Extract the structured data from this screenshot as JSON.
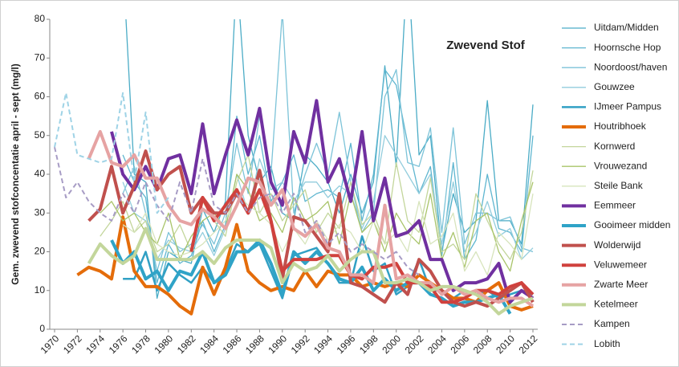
{
  "chart_data": {
    "type": "line",
    "title": "Zwevend Stof",
    "y_label": "Gem. zwevend stofconcentatie april - sept (mg/l)",
    "x": [
      1970,
      1971,
      1972,
      1973,
      1974,
      1975,
      1976,
      1977,
      1978,
      1979,
      1980,
      1981,
      1982,
      1983,
      1984,
      1985,
      1986,
      1987,
      1988,
      1989,
      1990,
      1991,
      1992,
      1993,
      1994,
      1995,
      1996,
      1997,
      1998,
      1999,
      2000,
      2001,
      2002,
      2003,
      2004,
      2005,
      2006,
      2007,
      2008,
      2009,
      2010,
      2011,
      2012
    ],
    "xlim": [
      1970,
      2012
    ],
    "xticks": [
      1970,
      1972,
      1974,
      1976,
      1978,
      1980,
      1982,
      1984,
      1986,
      1988,
      1990,
      1992,
      1994,
      1996,
      1998,
      2000,
      2002,
      2004,
      2006,
      2008,
      2010,
      2012
    ],
    "ylim": [
      0,
      80
    ],
    "yticks": [
      0,
      10,
      20,
      30,
      40,
      50,
      60,
      70,
      80
    ],
    "series": [
      {
        "name": "Uitdam/Midden",
        "color": "#4bacc6",
        "style": "thin",
        "values": [
          null,
          null,
          null,
          null,
          null,
          null,
          95,
          40,
          38,
          8,
          20,
          18,
          17,
          31,
          25,
          33,
          92,
          50,
          38,
          42,
          30,
          28,
          45,
          42,
          38,
          30,
          40,
          30,
          38,
          68,
          42,
          95,
          45,
          50,
          20,
          35,
          25,
          28,
          59,
          28,
          28,
          22,
          58
        ]
      },
      {
        "name": "Hoornsche Hop",
        "color": "#5fb6d0",
        "style": "thin",
        "values": [
          null,
          null,
          null,
          null,
          null,
          null,
          45,
          38,
          34,
          12,
          22,
          17,
          19,
          28,
          20,
          27,
          55,
          40,
          50,
          33,
          38,
          45,
          33,
          35,
          36,
          34,
          48,
          28,
          40,
          67,
          63,
          48,
          35,
          42,
          19,
          43,
          18,
          23,
          40,
          26,
          25,
          20,
          50
        ]
      },
      {
        "name": "Noordoost/haven",
        "color": "#7cc3d8",
        "style": "thin",
        "values": [
          null,
          null,
          null,
          null,
          null,
          null,
          35,
          42,
          30,
          15,
          25,
          20,
          22,
          27,
          22,
          30,
          48,
          35,
          55,
          40,
          82,
          30,
          40,
          48,
          40,
          56,
          38,
          25,
          30,
          60,
          67,
          43,
          42,
          52,
          25,
          52,
          22,
          30,
          30,
          28,
          29,
          21,
          20
        ]
      },
      {
        "name": "Gouwzee",
        "color": "#93cddd",
        "style": "thin",
        "values": [
          null,
          null,
          null,
          null,
          null,
          null,
          38,
          30,
          28,
          18,
          23,
          21,
          20,
          25,
          19,
          26,
          40,
          30,
          44,
          36,
          38,
          33,
          38,
          38,
          34,
          37,
          35,
          26,
          33,
          50,
          45,
          40,
          35,
          40,
          22,
          38,
          20,
          25,
          33,
          24,
          26,
          18,
          21
        ]
      },
      {
        "name": "IJmeer Pampus",
        "color": "#31a0c4",
        "style": "medium",
        "values": [
          null,
          null,
          null,
          null,
          null,
          null,
          13,
          13,
          20,
          10,
          17,
          14,
          12,
          16,
          12,
          15,
          22,
          20,
          22,
          15,
          8,
          19,
          20,
          21,
          17,
          12,
          12,
          24,
          15,
          17,
          9,
          11,
          18,
          10,
          10,
          8,
          10,
          9,
          10,
          8,
          9,
          10,
          9
        ]
      },
      {
        "name": "Houtribhoek",
        "color": "#e46c0a",
        "style": "thick",
        "values": [
          null,
          null,
          14,
          16,
          15,
          13,
          29,
          15,
          11,
          11,
          9,
          6,
          4,
          16,
          9,
          16,
          27,
          15,
          12,
          10,
          11,
          10,
          15,
          11,
          15,
          14,
          14,
          11,
          12,
          11,
          12,
          11,
          14,
          12,
          10,
          8,
          8,
          7,
          10,
          12,
          6,
          5,
          6
        ]
      },
      {
        "name": "Kornwerd",
        "color": "#c3d69b",
        "style": "thin",
        "values": [
          null,
          null,
          null,
          null,
          24,
          28,
          33,
          25,
          28,
          20,
          22,
          27,
          20,
          33,
          28,
          24,
          38,
          45,
          30,
          35,
          28,
          32,
          36,
          25,
          30,
          26,
          38,
          27,
          30,
          22,
          43,
          28,
          25,
          39,
          20,
          22,
          18,
          35,
          28,
          22,
          18,
          25,
          41
        ]
      },
      {
        "name": "Vrouwezand",
        "color": "#a9c46a",
        "style": "thin",
        "values": [
          null,
          null,
          null,
          null,
          30,
          33,
          28,
          30,
          25,
          22,
          30,
          18,
          24,
          28,
          30,
          26,
          40,
          36,
          28,
          30,
          25,
          34,
          28,
          30,
          33,
          22,
          35,
          25,
          28,
          20,
          30,
          25,
          22,
          35,
          18,
          25,
          16,
          28,
          30,
          20,
          15,
          28,
          38
        ]
      },
      {
        "name": "Steile Bank",
        "color": "#d7e4bc",
        "style": "thin",
        "values": [
          null,
          null,
          null,
          null,
          null,
          null,
          27,
          25,
          30,
          22,
          20,
          19,
          20,
          22,
          25,
          28,
          35,
          32,
          30,
          27,
          20,
          26,
          22,
          28,
          23,
          27,
          25,
          20,
          28,
          22,
          25,
          20,
          33,
          22,
          24,
          30,
          15,
          20,
          14,
          25,
          22,
          18,
          35
        ]
      },
      {
        "name": "Eemmeer",
        "color": "#7030a0",
        "style": "thick",
        "values": [
          null,
          null,
          null,
          null,
          null,
          51,
          40,
          36,
          42,
          36,
          44,
          45,
          35,
          53,
          35,
          45,
          54,
          45,
          57,
          38,
          32,
          51,
          43,
          59,
          38,
          44,
          33,
          51,
          28,
          39,
          24,
          25,
          28,
          18,
          18,
          10,
          12,
          12,
          13,
          17,
          7,
          10,
          8
        ]
      },
      {
        "name": "Gooimeer midden",
        "color": "#2fa3c7",
        "style": "thick",
        "values": [
          null,
          null,
          null,
          null,
          null,
          23,
          17,
          20,
          13,
          15,
          10,
          15,
          14,
          20,
          12,
          14,
          20,
          20,
          23,
          17,
          9,
          20,
          17,
          20,
          17,
          13,
          12,
          16,
          10,
          13,
          10,
          12,
          12,
          9,
          8,
          6,
          7,
          7,
          8,
          9,
          4,
          null,
          null
        ]
      },
      {
        "name": "Wolderwijd",
        "color": "#c0504d",
        "style": "thick",
        "values": [
          null,
          null,
          null,
          28,
          31,
          42,
          30,
          37,
          46,
          36,
          40,
          42,
          30,
          34,
          30,
          30,
          35,
          30,
          41,
          28,
          13,
          29,
          28,
          24,
          20,
          35,
          12,
          11,
          9,
          7,
          12,
          9,
          18,
          15,
          10,
          7,
          6,
          7,
          6,
          8,
          10,
          12,
          7
        ]
      },
      {
        "name": "Veluwemeer",
        "color": "#d0413d",
        "style": "thick",
        "values": [
          null,
          null,
          null,
          null,
          null,
          null,
          null,
          null,
          null,
          null,
          null,
          null,
          20,
          34,
          28,
          32,
          36,
          30,
          36,
          28,
          15,
          18,
          18,
          18,
          19,
          19,
          14,
          13,
          16,
          16,
          17,
          12,
          12,
          11,
          7,
          7,
          8,
          10,
          10,
          9,
          11,
          12,
          9
        ]
      },
      {
        "name": "Zwarte Meer",
        "color": "#e6a3a3",
        "style": "thick",
        "values": [
          null,
          null,
          null,
          44,
          51,
          43,
          42,
          45,
          39,
          39,
          32,
          28,
          27,
          31,
          29,
          26,
          32,
          39,
          38,
          32,
          36,
          26,
          24,
          27,
          21,
          20,
          14,
          14,
          12,
          32,
          13,
          14,
          12,
          12,
          9,
          11,
          9,
          10,
          8,
          7,
          8,
          8,
          6
        ]
      },
      {
        "name": "Ketelmeer",
        "color": "#c3d69b",
        "style": "thick",
        "values": [
          null,
          null,
          null,
          17,
          22,
          19,
          17,
          19,
          26,
          18,
          18,
          18,
          18,
          20,
          17,
          21,
          23,
          23,
          23,
          21,
          12,
          17,
          15,
          16,
          19,
          15,
          18,
          20,
          20,
          12,
          12,
          13,
          12,
          10,
          11,
          11,
          10,
          9,
          7,
          4,
          6,
          7,
          8
        ]
      },
      {
        "name": "Kampen",
        "color": "#a79cc5",
        "style": "dashed",
        "values": [
          47,
          34,
          38,
          33,
          30,
          28,
          35,
          30,
          38,
          32,
          28,
          38,
          30,
          44,
          32,
          30,
          35,
          30,
          34,
          35,
          30,
          35,
          25,
          28,
          22,
          25,
          20,
          22,
          20,
          18,
          20,
          16,
          14,
          null,
          null,
          null,
          null,
          null,
          null,
          null,
          null,
          null,
          null
        ]
      },
      {
        "name": "Lobith",
        "color": "#9fd3e6",
        "style": "dashed",
        "values": [
          47,
          61,
          45,
          44,
          43,
          44,
          61,
          38,
          56,
          30,
          34,
          null,
          null,
          null,
          null,
          null,
          null,
          null,
          null,
          null,
          null,
          null,
          null,
          null,
          null,
          null,
          null,
          null,
          null,
          null,
          null,
          null,
          null,
          null,
          null,
          null,
          null,
          null,
          null,
          null,
          null,
          null,
          null
        ]
      }
    ]
  }
}
